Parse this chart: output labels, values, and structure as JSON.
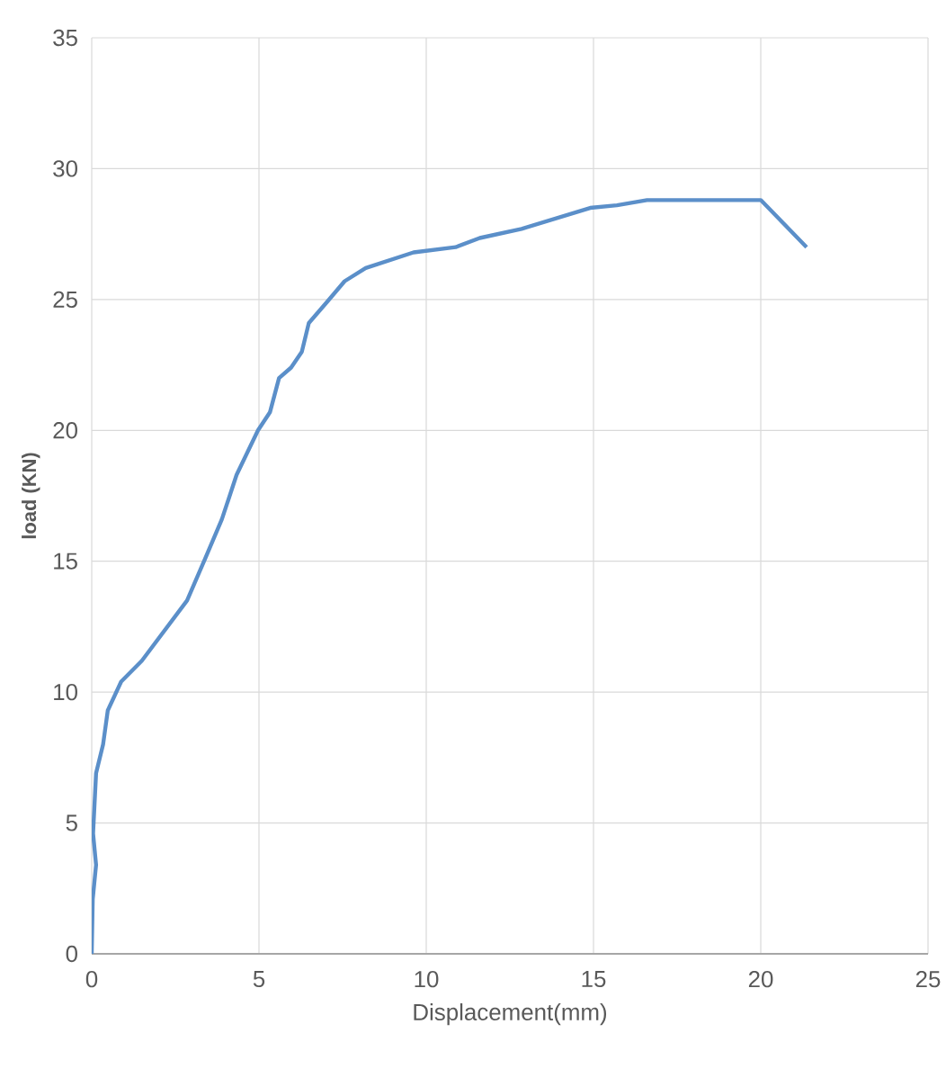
{
  "chart_data": {
    "type": "line",
    "xlabel": "Displacement(mm)",
    "ylabel": "load (KN)",
    "series": [
      {
        "color": "#5b8fc9",
        "x": [
          0,
          0.03,
          0.13,
          0.04,
          0.13,
          0.34,
          0.48,
          0.88,
          1.5,
          2.85,
          3.39,
          3.89,
          4.33,
          4.97,
          5.33,
          5.6,
          5.96,
          6.28,
          6.49,
          7.03,
          7.56,
          8.19,
          9.62,
          10.88,
          11.6,
          12.85,
          14.9,
          15.7,
          16.6,
          20.0,
          21.37
        ],
        "values": [
          0,
          2.1,
          3.4,
          4.6,
          6.9,
          8.0,
          9.3,
          10.4,
          11.2,
          13.5,
          15.1,
          16.6,
          18.3,
          20.0,
          20.7,
          22.0,
          22.4,
          23.0,
          24.1,
          24.9,
          25.7,
          26.2,
          26.8,
          27.0,
          27.35,
          27.7,
          28.5,
          28.6,
          28.8,
          28.8,
          27.0
        ]
      }
    ],
    "xlim": [
      0,
      25
    ],
    "ylim": [
      0,
      35
    ],
    "xticks": [
      0,
      5,
      10,
      15,
      20,
      25
    ],
    "yticks": [
      0,
      5,
      10,
      15,
      20,
      25,
      30,
      35
    ],
    "grid": true,
    "marker": "none",
    "line_style": "solid"
  }
}
